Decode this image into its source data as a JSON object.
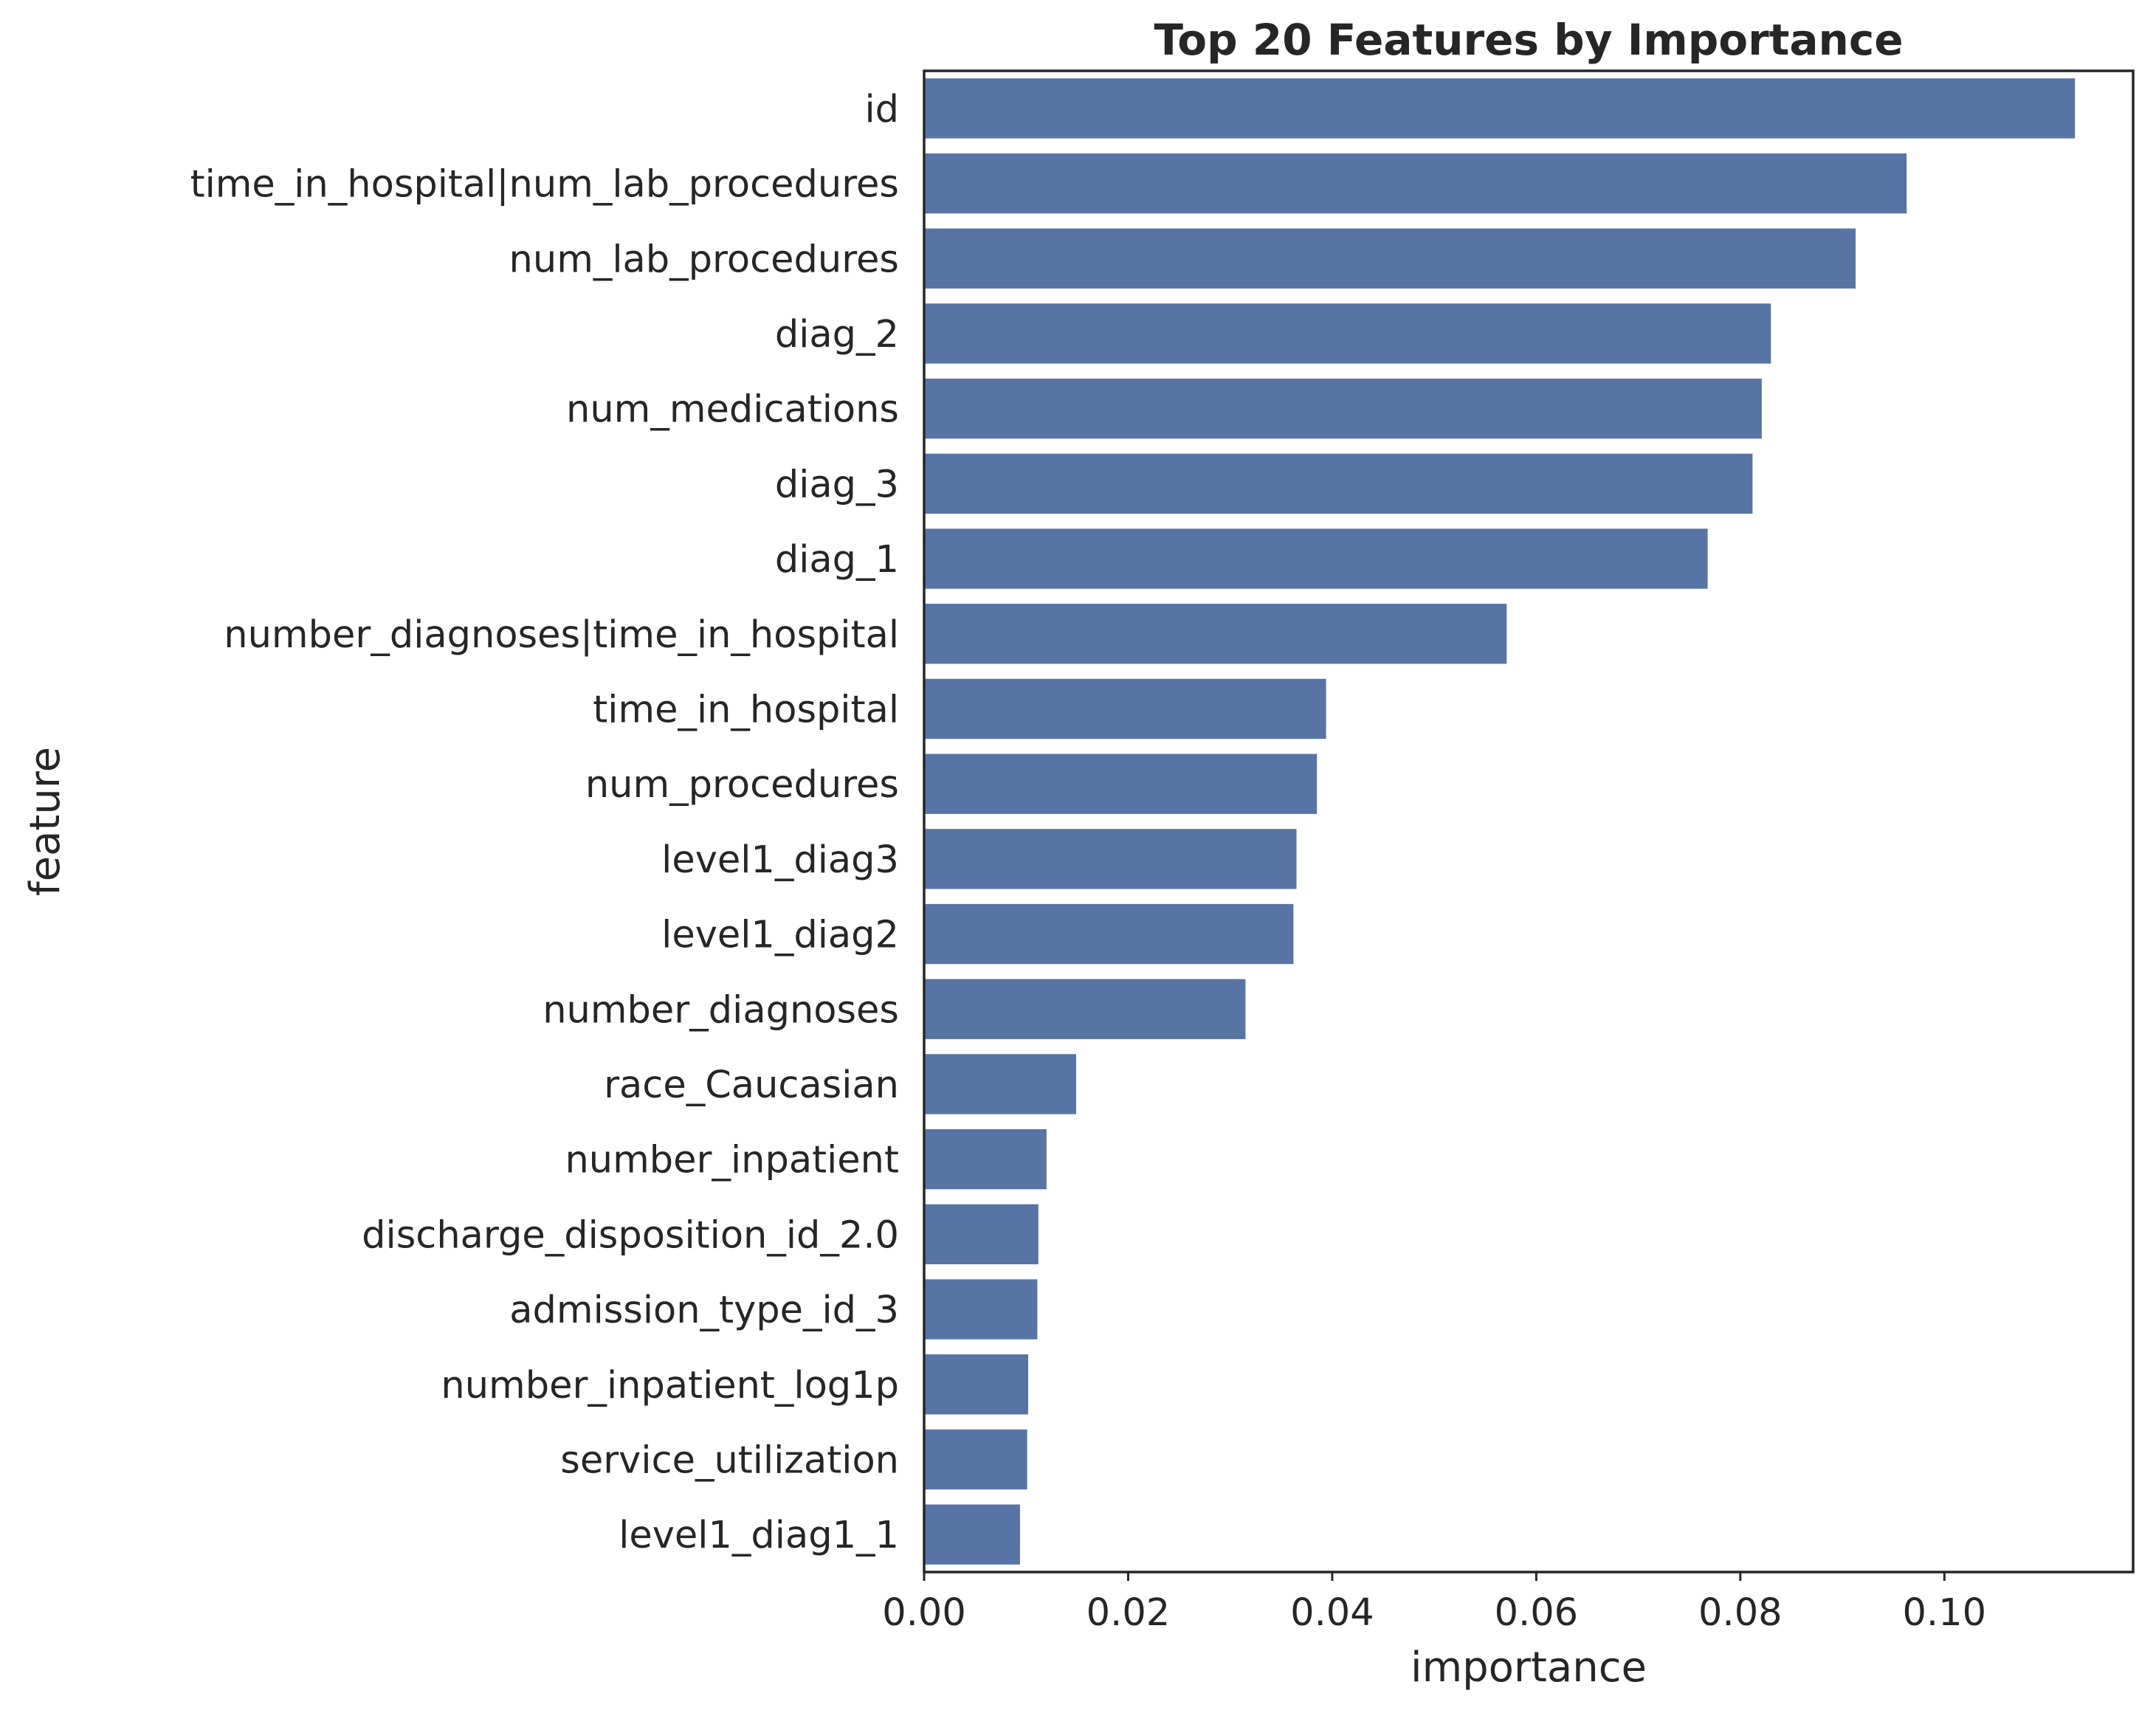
{
  "chart_data": {
    "type": "bar",
    "orientation": "horizontal",
    "title": "Top 20 Features by Importance",
    "xlabel": "importance",
    "ylabel": "feature",
    "xlim": [
      0,
      0.1185
    ],
    "xticks": [
      "0.00",
      "0.02",
      "0.04",
      "0.06",
      "0.08",
      "0.10"
    ],
    "grid": false,
    "bar_color": "#5874a5",
    "categories": [
      "id",
      "time_in_hospital|num_lab_procedures",
      "num_lab_procedures",
      "diag_2",
      "num_medications",
      "diag_3",
      "diag_1",
      "number_diagnoses|time_in_hospital",
      "time_in_hospital",
      "num_procedures",
      "level1_diag3",
      "level1_diag2",
      "number_diagnoses",
      "race_Caucasian",
      "number_inpatient",
      "discharge_disposition_id_2.0",
      "admission_type_id_3",
      "number_inpatient_log1p",
      "service_utilization",
      "level1_diag1_1"
    ],
    "values": [
      0.1128,
      0.0963,
      0.0913,
      0.083,
      0.0821,
      0.0812,
      0.0768,
      0.0571,
      0.0394,
      0.0385,
      0.0365,
      0.0362,
      0.0315,
      0.0149,
      0.012,
      0.0112,
      0.0111,
      0.0102,
      0.0101,
      0.0094
    ]
  }
}
